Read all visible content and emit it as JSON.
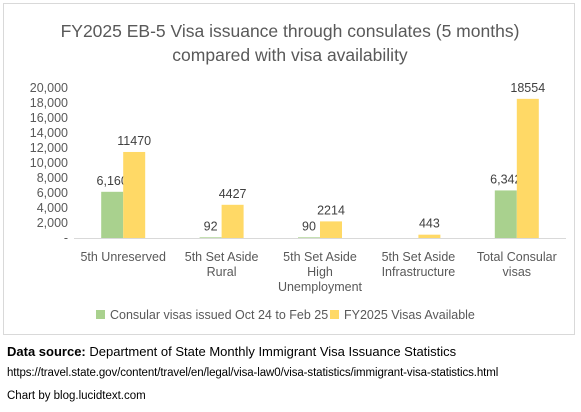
{
  "chart_data": {
    "type": "bar",
    "title": [
      "FY2025 EB-5 Visa issuance through consulates (5 months)",
      "compared with visa availability"
    ],
    "categories": [
      [
        "5th Unreserved"
      ],
      [
        "5th Set Aside",
        "Rural"
      ],
      [
        "5th Set Aside",
        "High",
        "Unemployment"
      ],
      [
        "5th Set Aside",
        "Infrastructure"
      ],
      [
        "Total Consular",
        "visas"
      ]
    ],
    "series": [
      {
        "name": "Consular visas issued Oct 24 to Feb 25",
        "color": "#a9d18e",
        "values": [
          6160,
          92,
          90,
          0,
          6342
        ],
        "labels": [
          "6,160",
          "92",
          "90",
          "",
          "6,342"
        ]
      },
      {
        "name": "FY2025 Visas Available",
        "color": "#ffd966",
        "values": [
          11470,
          4427,
          2214,
          443,
          18554
        ],
        "labels": [
          "11470",
          "4427",
          "2214",
          "443",
          "18554"
        ]
      }
    ],
    "ylim": [
      0,
      20000
    ],
    "yticks": [
      "-",
      "2,000",
      "4,000",
      "6,000",
      "8,000",
      "10,000",
      "12,000",
      "14,000",
      "16,000",
      "18,000",
      "20,000"
    ],
    "xlabel": "",
    "ylabel": "",
    "legend": "bottom",
    "grid": false
  },
  "footer": {
    "source_label": "Data source:",
    "source_text": " Department of State Monthly Immigrant Visa Issuance Statistics",
    "url": "https://travel.state.gov/content/travel/en/legal/visa-law0/visa-statistics/immigrant-visa-statistics.html",
    "credit": "Chart by blog.lucidtext.com"
  }
}
